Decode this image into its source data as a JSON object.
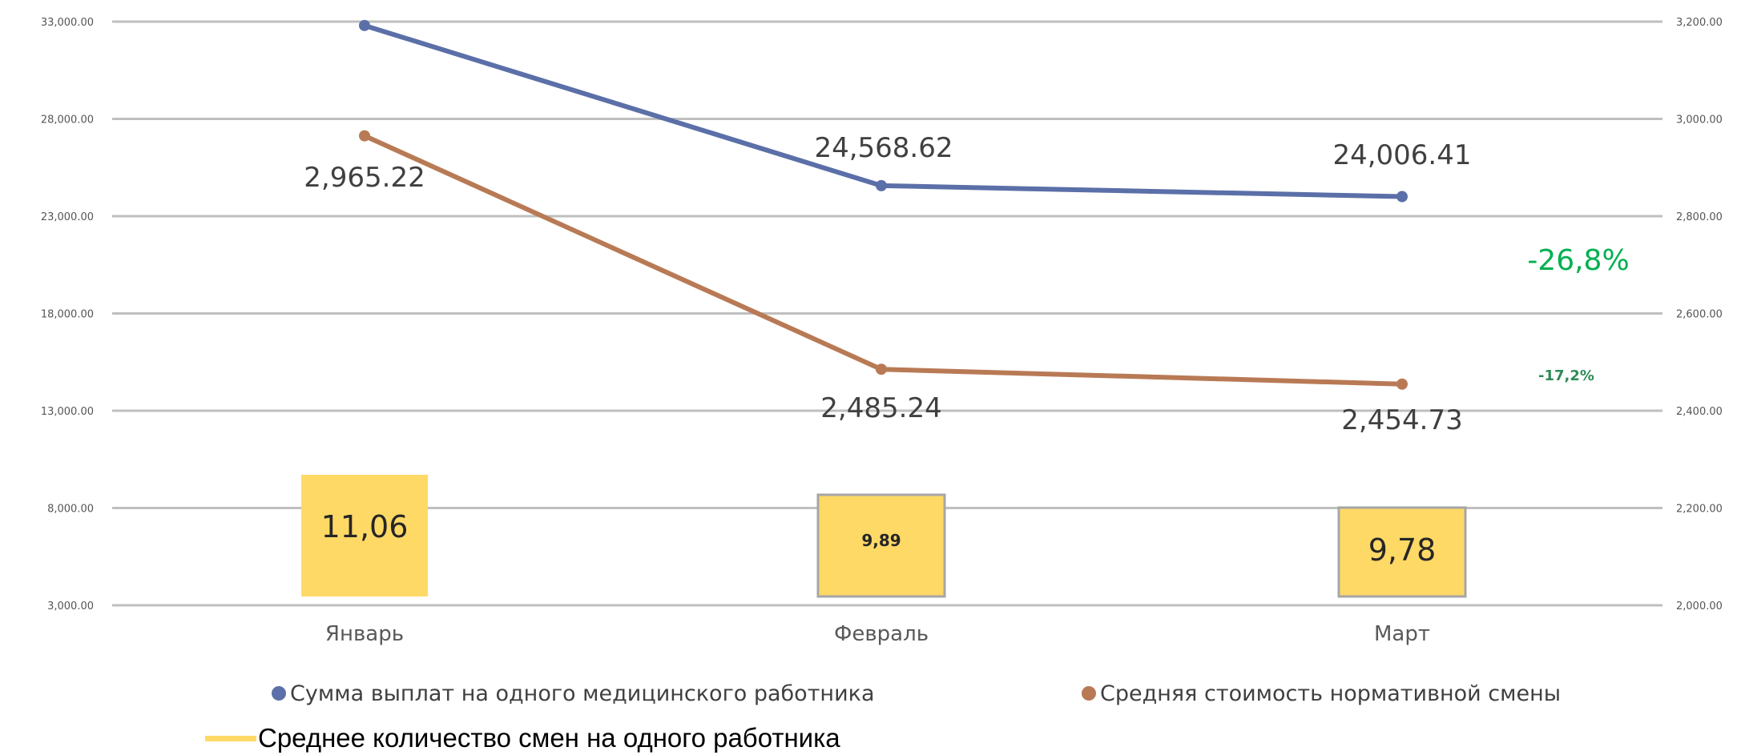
{
  "chart_data": {
    "type": "line",
    "categories": [
      "Январь",
      "Февраль",
      "Март"
    ],
    "y_left": {
      "range": [
        3000,
        33000
      ],
      "ticks": [
        3000,
        8000,
        13000,
        18000,
        23000,
        28000,
        33000
      ],
      "tick_labels": [
        "3,000.00",
        "8,000.00",
        "13,000.00",
        "18,000.00",
        "23,000.00",
        "28,000.00",
        "33,000.00"
      ]
    },
    "y_right": {
      "range": [
        2000,
        3200
      ],
      "ticks": [
        2000,
        2200,
        2400,
        2600,
        2800,
        3000,
        3200
      ],
      "tick_labels": [
        "2,000.00",
        "2,200.00",
        "2,400.00",
        "2,600.00",
        "2,800.00",
        "3,000.00",
        "3,200.00"
      ]
    },
    "series": [
      {
        "name": "Сумма выплат на одного медицинского работника",
        "type": "line",
        "axis": "left",
        "color": "#5b6fa8",
        "values": [
          32800,
          24568.62,
          24006.41
        ],
        "labels": [
          "",
          "24,568.62",
          "24,006.41"
        ]
      },
      {
        "name": "Средняя стоимость нормативной смены",
        "type": "line",
        "axis": "right",
        "color": "#b87a55",
        "values": [
          2965.22,
          2485.24,
          2454.73
        ],
        "labels": [
          "2,965.22",
          "2,485.24",
          "2,454.73"
        ]
      },
      {
        "name": "Среднее количество смен на одного работника",
        "type": "bar",
        "color": "#ffd966",
        "values": [
          11.06,
          9.89,
          9.78
        ],
        "labels": [
          "11,06",
          "9,89",
          "9,78"
        ]
      }
    ],
    "annotations": [
      "-26,8%",
      "-17,2%"
    ],
    "grid": true,
    "legend": "bottom"
  }
}
